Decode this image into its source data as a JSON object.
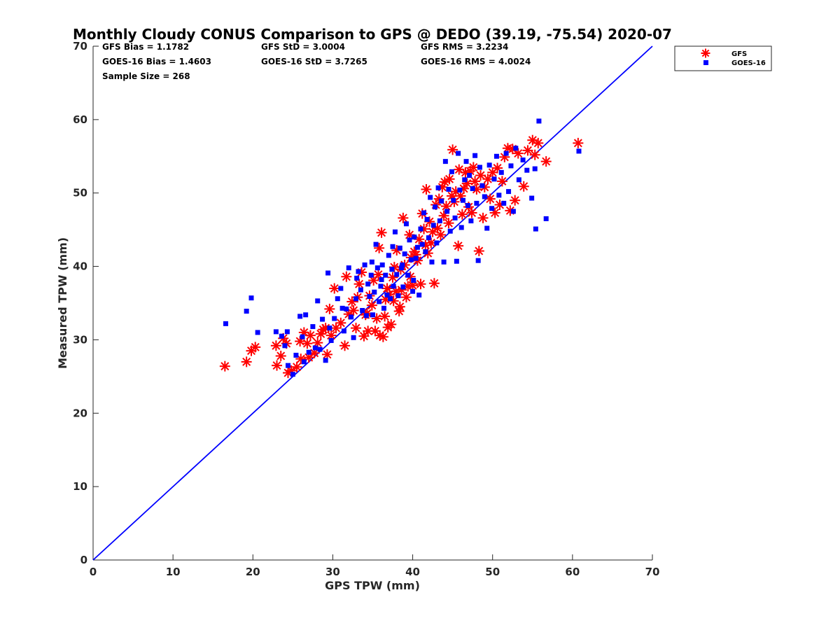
{
  "chart_data": {
    "type": "scatter",
    "title": "Monthly Cloudy CONUS Comparison to GPS @ DEDO (39.19, -75.54) 2020-07",
    "xlabel": "GPS TPW (mm)",
    "ylabel": "Measured TPW (mm)",
    "xlim": [
      0,
      70
    ],
    "ylim": [
      0,
      70
    ],
    "xticks": [
      "0",
      "10",
      "20",
      "30",
      "40",
      "50",
      "60",
      "70"
    ],
    "yticks": [
      "0",
      "10",
      "20",
      "30",
      "40",
      "50",
      "60",
      "70"
    ],
    "grid": false,
    "legend_position": "top-right, outside plot",
    "stats": [
      [
        "GFS Bias = 1.1782",
        "GFS StD = 3.0004",
        "GFS RMS = 3.2234"
      ],
      [
        "GOES-16 Bias = 1.4603",
        "GOES-16 StD = 3.7265",
        "GOES-16 RMS = 4.0024"
      ],
      [
        "Sample Size = 268"
      ]
    ],
    "reference_line": {
      "x": [
        0,
        70
      ],
      "y": [
        0,
        70
      ],
      "color": "#0000ff"
    },
    "series": [
      {
        "name": "GFS",
        "marker": "asterisk",
        "color": "#ff0000",
        "points": [
          [
            16.5,
            26.4
          ],
          [
            19.2,
            27.0
          ],
          [
            19.8,
            28.5
          ],
          [
            20.3,
            29.0
          ],
          [
            22.9,
            29.2
          ],
          [
            23.0,
            26.5
          ],
          [
            23.5,
            27.8
          ],
          [
            24.2,
            29.5
          ],
          [
            24.4,
            25.5
          ],
          [
            24.8,
            25.8
          ],
          [
            25.5,
            26.3
          ],
          [
            25.9,
            29.8
          ],
          [
            26.4,
            31.0
          ],
          [
            26.8,
            29.5
          ],
          [
            27.0,
            27.6
          ],
          [
            27.7,
            28.2
          ],
          [
            28.1,
            29.6
          ],
          [
            28.5,
            30.8
          ],
          [
            28.8,
            31.4
          ],
          [
            29.3,
            28.0
          ],
          [
            29.6,
            34.2
          ],
          [
            29.8,
            30.6
          ],
          [
            30.4,
            31.6
          ],
          [
            30.2,
            37.0
          ],
          [
            31.5,
            29.2
          ],
          [
            31.7,
            38.6
          ],
          [
            32.0,
            33.5
          ],
          [
            32.4,
            35.2
          ],
          [
            32.6,
            34.0
          ],
          [
            32.9,
            31.6
          ],
          [
            33.1,
            35.8
          ],
          [
            33.6,
            39.2
          ],
          [
            33.9,
            30.5
          ],
          [
            34.1,
            33.4
          ],
          [
            34.4,
            31.2
          ],
          [
            34.6,
            36.0
          ],
          [
            34.9,
            34.7
          ],
          [
            35.1,
            38.1
          ],
          [
            35.3,
            31.2
          ],
          [
            35.5,
            32.9
          ],
          [
            35.8,
            42.5
          ],
          [
            35.9,
            30.6
          ],
          [
            36.1,
            44.6
          ],
          [
            36.3,
            30.4
          ],
          [
            36.6,
            35.5
          ],
          [
            36.8,
            37.0
          ],
          [
            36.9,
            31.7
          ],
          [
            37.1,
            36.2
          ],
          [
            37.3,
            32.1
          ],
          [
            37.5,
            38.5
          ],
          [
            37.6,
            35.3
          ],
          [
            37.9,
            36.6
          ],
          [
            38.0,
            42.2
          ],
          [
            38.3,
            33.9
          ],
          [
            38.5,
            39.6
          ],
          [
            38.6,
            36.8
          ],
          [
            38.8,
            46.6
          ],
          [
            39.0,
            40.2
          ],
          [
            39.2,
            35.8
          ],
          [
            39.4,
            37.3
          ],
          [
            39.6,
            44.3
          ],
          [
            39.8,
            41.2
          ],
          [
            40.0,
            37.4
          ],
          [
            40.2,
            42.0
          ],
          [
            40.4,
            41.6
          ],
          [
            40.6,
            40.8
          ],
          [
            40.8,
            43.7
          ],
          [
            41.0,
            37.6
          ],
          [
            41.2,
            47.2
          ],
          [
            41.4,
            45.1
          ],
          [
            41.6,
            42.9
          ],
          [
            41.7,
            50.5
          ],
          [
            41.9,
            41.8
          ],
          [
            42.1,
            46.1
          ],
          [
            42.3,
            43.2
          ],
          [
            42.5,
            44.7
          ],
          [
            42.7,
            37.7
          ],
          [
            42.9,
            48.4
          ],
          [
            43.1,
            45.2
          ],
          [
            43.3,
            49.2
          ],
          [
            43.5,
            44.3
          ],
          [
            43.7,
            50.8
          ],
          [
            43.9,
            46.9
          ],
          [
            44.0,
            51.5
          ],
          [
            44.2,
            48.2
          ],
          [
            44.5,
            45.9
          ],
          [
            44.6,
            51.9
          ],
          [
            44.9,
            49.6
          ],
          [
            45.0,
            55.9
          ],
          [
            45.2,
            48.8
          ],
          [
            45.4,
            50.2
          ],
          [
            45.7,
            42.8
          ],
          [
            45.8,
            53.2
          ],
          [
            46.0,
            49.6
          ],
          [
            46.2,
            47.1
          ],
          [
            46.4,
            50.6
          ],
          [
            46.6,
            52.8
          ],
          [
            46.8,
            51.3
          ],
          [
            47.0,
            48.1
          ],
          [
            47.2,
            53.0
          ],
          [
            47.4,
            47.3
          ],
          [
            47.6,
            53.5
          ],
          [
            47.8,
            51.6
          ],
          [
            48.0,
            50.5
          ],
          [
            48.3,
            42.1
          ],
          [
            48.5,
            52.4
          ],
          [
            48.8,
            46.6
          ],
          [
            49.0,
            50.8
          ],
          [
            49.4,
            51.9
          ],
          [
            49.7,
            49.2
          ],
          [
            50.0,
            52.8
          ],
          [
            50.3,
            47.3
          ],
          [
            50.6,
            53.4
          ],
          [
            50.9,
            48.4
          ],
          [
            51.2,
            51.6
          ],
          [
            51.5,
            54.9
          ],
          [
            51.9,
            56.1
          ],
          [
            52.2,
            47.6
          ],
          [
            52.5,
            56.0
          ],
          [
            52.8,
            49.0
          ],
          [
            53.2,
            55.4
          ],
          [
            53.9,
            50.9
          ],
          [
            54.4,
            55.8
          ],
          [
            55.0,
            57.2
          ],
          [
            55.3,
            55.2
          ],
          [
            55.7,
            56.8
          ],
          [
            56.7,
            54.3
          ],
          [
            60.7,
            56.8
          ],
          [
            23.8,
            30.2
          ],
          [
            26.0,
            27.4
          ],
          [
            27.2,
            30.6
          ],
          [
            29.1,
            31.6
          ],
          [
            31.0,
            32.3
          ],
          [
            33.3,
            37.6
          ],
          [
            34.3,
            33.6
          ],
          [
            35.7,
            38.9
          ],
          [
            36.5,
            33.2
          ],
          [
            37.7,
            39.9
          ],
          [
            38.4,
            34.5
          ],
          [
            39.7,
            38.6
          ]
        ]
      },
      {
        "name": "GOES-16",
        "marker": "square",
        "color": "#0000ff",
        "points": [
          [
            16.6,
            32.2
          ],
          [
            19.2,
            33.9
          ],
          [
            19.8,
            35.7
          ],
          [
            20.6,
            31.0
          ],
          [
            22.9,
            31.1
          ],
          [
            23.6,
            30.5
          ],
          [
            24.3,
            31.1
          ],
          [
            24.4,
            26.5
          ],
          [
            25.0,
            25.3
          ],
          [
            25.4,
            27.9
          ],
          [
            25.9,
            33.2
          ],
          [
            26.2,
            30.4
          ],
          [
            26.6,
            33.4
          ],
          [
            27.0,
            28.3
          ],
          [
            27.5,
            31.8
          ],
          [
            28.1,
            35.3
          ],
          [
            28.4,
            28.7
          ],
          [
            28.7,
            32.8
          ],
          [
            29.1,
            27.2
          ],
          [
            29.4,
            39.1
          ],
          [
            29.8,
            29.9
          ],
          [
            30.2,
            32.9
          ],
          [
            30.6,
            35.6
          ],
          [
            31.0,
            37.0
          ],
          [
            31.4,
            31.2
          ],
          [
            31.7,
            34.2
          ],
          [
            32.0,
            39.8
          ],
          [
            32.3,
            33.1
          ],
          [
            32.6,
            30.3
          ],
          [
            32.9,
            35.6
          ],
          [
            33.2,
            39.3
          ],
          [
            33.5,
            36.8
          ],
          [
            33.7,
            34.0
          ],
          [
            34.0,
            40.2
          ],
          [
            34.2,
            33.3
          ],
          [
            34.4,
            37.6
          ],
          [
            34.6,
            35.9
          ],
          [
            34.8,
            38.8
          ],
          [
            35.0,
            33.4
          ],
          [
            35.2,
            36.5
          ],
          [
            35.4,
            43.0
          ],
          [
            35.6,
            39.8
          ],
          [
            35.8,
            35.2
          ],
          [
            36.0,
            37.3
          ],
          [
            36.2,
            40.2
          ],
          [
            36.4,
            34.3
          ],
          [
            36.6,
            38.8
          ],
          [
            36.8,
            36.1
          ],
          [
            37.0,
            41.5
          ],
          [
            37.2,
            35.6
          ],
          [
            37.4,
            39.6
          ],
          [
            37.6,
            37.3
          ],
          [
            37.8,
            44.7
          ],
          [
            38.0,
            38.9
          ],
          [
            38.2,
            36.0
          ],
          [
            38.4,
            42.5
          ],
          [
            38.6,
            39.8
          ],
          [
            38.8,
            37.2
          ],
          [
            39.0,
            41.7
          ],
          [
            39.2,
            45.8
          ],
          [
            39.4,
            38.8
          ],
          [
            39.6,
            43.6
          ],
          [
            39.8,
            40.9
          ],
          [
            40.0,
            36.6
          ],
          [
            40.2,
            44.0
          ],
          [
            40.4,
            41.1
          ],
          [
            40.6,
            42.6
          ],
          [
            40.8,
            36.1
          ],
          [
            41.0,
            45.1
          ],
          [
            41.2,
            43.0
          ],
          [
            41.4,
            47.3
          ],
          [
            41.6,
            42.0
          ],
          [
            41.8,
            46.4
          ],
          [
            42.0,
            43.9
          ],
          [
            42.2,
            49.4
          ],
          [
            42.4,
            40.6
          ],
          [
            42.6,
            45.6
          ],
          [
            42.8,
            48.1
          ],
          [
            43.0,
            43.2
          ],
          [
            43.2,
            50.7
          ],
          [
            43.4,
            46.2
          ],
          [
            43.6,
            48.9
          ],
          [
            43.9,
            40.6
          ],
          [
            44.1,
            54.3
          ],
          [
            44.3,
            47.5
          ],
          [
            44.5,
            50.5
          ],
          [
            44.7,
            44.8
          ],
          [
            44.9,
            52.9
          ],
          [
            45.1,
            49.0
          ],
          [
            45.3,
            46.6
          ],
          [
            45.5,
            40.7
          ],
          [
            45.7,
            55.4
          ],
          [
            45.9,
            50.4
          ],
          [
            46.1,
            45.3
          ],
          [
            46.3,
            49.0
          ],
          [
            46.5,
            51.8
          ],
          [
            46.7,
            54.3
          ],
          [
            46.9,
            48.3
          ],
          [
            47.1,
            52.4
          ],
          [
            47.3,
            46.2
          ],
          [
            47.5,
            50.6
          ],
          [
            47.8,
            55.1
          ],
          [
            48.0,
            48.6
          ],
          [
            48.2,
            40.8
          ],
          [
            48.4,
            53.5
          ],
          [
            48.7,
            51.0
          ],
          [
            49.0,
            49.5
          ],
          [
            49.3,
            45.2
          ],
          [
            49.6,
            53.8
          ],
          [
            49.9,
            47.9
          ],
          [
            50.2,
            51.9
          ],
          [
            50.5,
            55.0
          ],
          [
            50.8,
            49.7
          ],
          [
            51.1,
            52.8
          ],
          [
            51.4,
            48.6
          ],
          [
            51.7,
            55.4
          ],
          [
            52.0,
            50.2
          ],
          [
            52.3,
            53.7
          ],
          [
            52.6,
            47.5
          ],
          [
            52.9,
            56.1
          ],
          [
            53.3,
            51.8
          ],
          [
            53.8,
            54.5
          ],
          [
            54.3,
            53.1
          ],
          [
            54.9,
            49.3
          ],
          [
            55.3,
            53.3
          ],
          [
            55.4,
            45.1
          ],
          [
            55.8,
            59.8
          ],
          [
            56.7,
            46.5
          ],
          [
            60.8,
            55.7
          ],
          [
            24.0,
            29.2
          ],
          [
            26.4,
            27.0
          ],
          [
            27.8,
            28.9
          ],
          [
            29.6,
            31.6
          ],
          [
            31.2,
            34.3
          ],
          [
            33.0,
            38.4
          ],
          [
            34.9,
            40.6
          ],
          [
            36.1,
            38.2
          ],
          [
            37.5,
            42.7
          ],
          [
            38.7,
            40.2
          ],
          [
            40.1,
            38.1
          ]
        ]
      }
    ]
  }
}
